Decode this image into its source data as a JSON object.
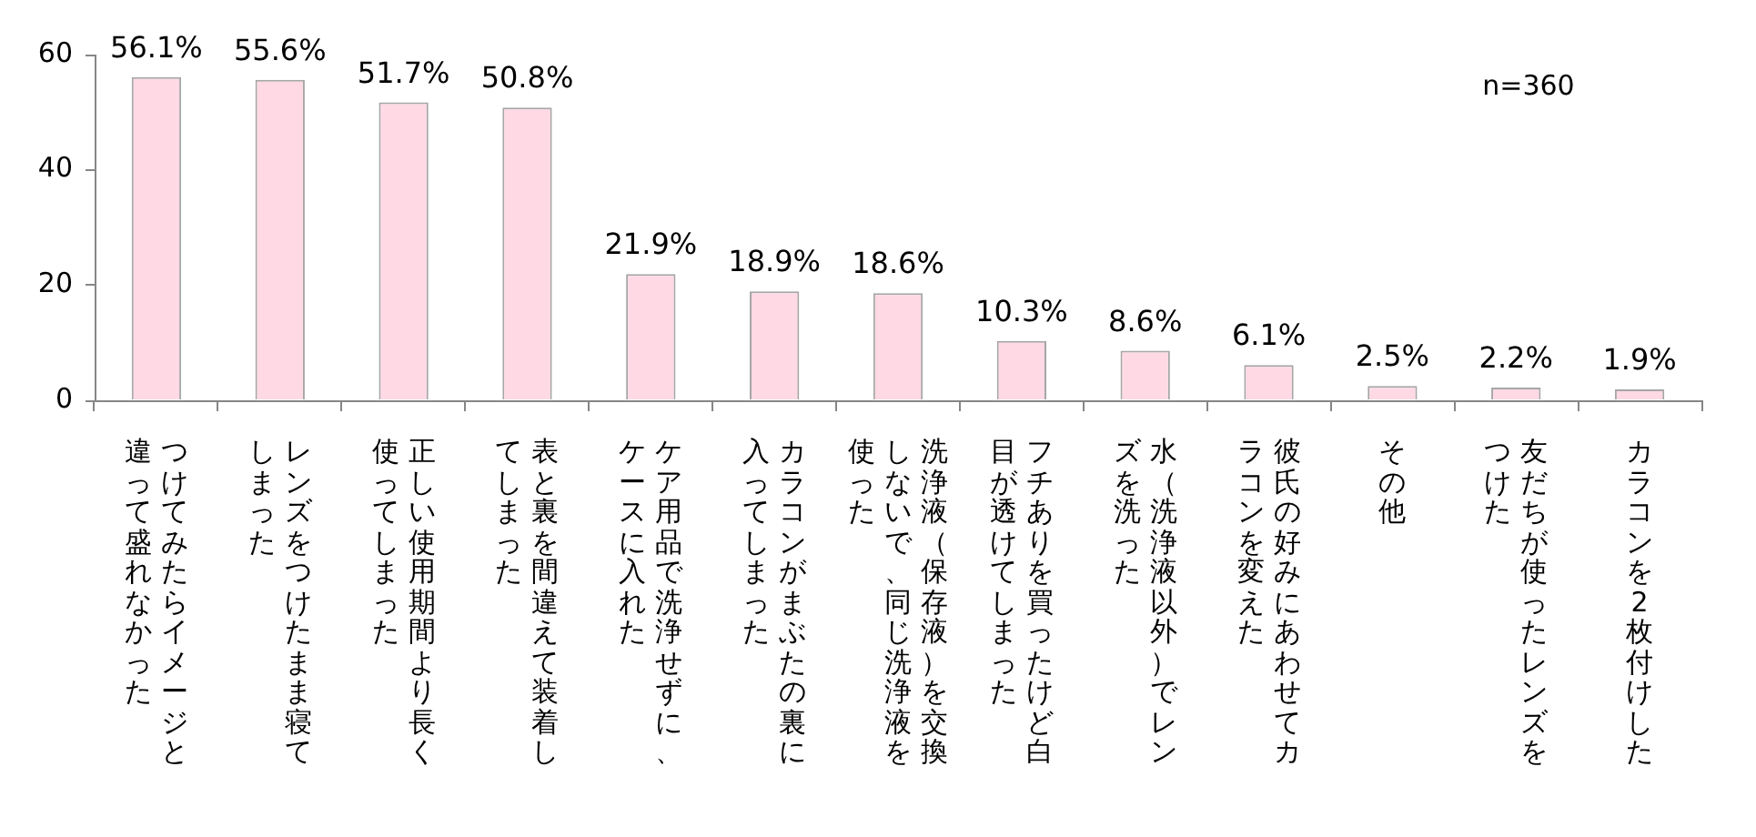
{
  "chart_data": {
    "type": "bar",
    "categories": [
      "つけてみたらイメージと違って盛れなかった",
      "レンズをつけたまま寝てしまった",
      "正しい使用期間より長く使ってしまった",
      "表と裏を間違えて装着してしまった",
      "ケア用品で洗浄せずに、ケースに入れた",
      "カラコンがまぶたの裏に入ってしまった",
      "洗浄液（保存液）を交換しないで、同じ洗浄液を使った",
      "フチありを買ったけど白目が透けてしまった",
      "水（洗浄液以外）でレンズを洗った",
      "彼氏の好みにあわせてカラコンを変えた",
      "その他",
      "友だちが使ったレンズをつけた",
      "カラコンを2枚付けした"
    ],
    "values": [
      56.1,
      55.6,
      51.7,
      50.8,
      21.9,
      18.9,
      18.6,
      10.3,
      8.6,
      6.1,
      2.5,
      2.2,
      1.9
    ],
    "value_labels": [
      "56.1%",
      "55.6%",
      "51.7%",
      "50.8%",
      "21.9%",
      "18.9%",
      "18.6%",
      "10.3%",
      "8.6%",
      "6.1%",
      "2.5%",
      "2.2%",
      "1.9%"
    ],
    "color": "#ffd9e4",
    "ylim": [
      0,
      60
    ],
    "yticks": [
      0,
      20,
      40,
      60
    ],
    "grid": false,
    "legend": false,
    "annotations": [
      "n=360"
    ]
  }
}
